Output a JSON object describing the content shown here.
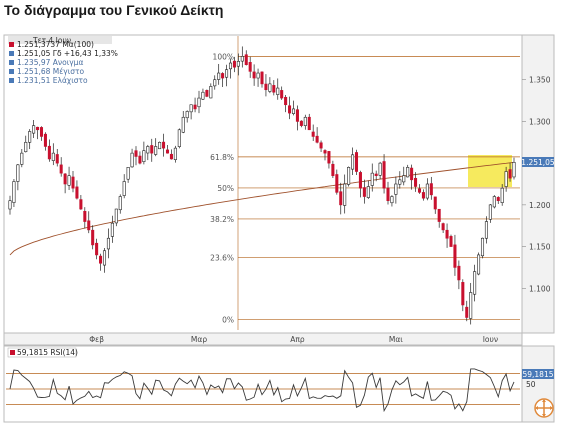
{
  "title": "Το διάγραμμα του Γενικού Δείκτη",
  "colors": {
    "up": "#ffffff",
    "down": "#c8102e",
    "ma": "#a0522d",
    "fib": "#b5651d",
    "rsi": "#3a3a3a",
    "highlight": "#f5e642",
    "label_bg": "#4a7ab8"
  },
  "main_chart": {
    "date_header": "Τετ 4 Ιουν",
    "legend": [
      {
        "icon": "down",
        "text": "1.251,3737 Μα(100)"
      },
      {
        "icon": "up",
        "text": "1.251,05 Γδ +16,43 1,33%"
      },
      {
        "icon": "up",
        "text": "1.235,97 Ανοιγμα"
      },
      {
        "icon": "up",
        "text": "1.251,68 Μέγιστο"
      },
      {
        "icon": "up",
        "text": "1.231,51 Ελάχιστο"
      }
    ],
    "current_label": "1.251,05",
    "fib_labels": [
      "100%",
      "61.8%",
      "50%",
      "38.2%",
      "23.6%",
      "0%"
    ],
    "fib_levels": [
      1.378,
      1.2575,
      1.2203,
      1.1831,
      1.137,
      1.0625
    ],
    "y_ticks": [
      "1.350",
      "1.300",
      "1.250",
      "1.200",
      "1.150",
      "1.100"
    ],
    "y_tick_values": [
      1.35,
      1.3,
      1.25,
      1.2,
      1.15,
      1.1
    ],
    "x_ticks": [
      "Φεβ",
      "Μαρ",
      "Απρ",
      "Μαι",
      "Ιουν"
    ],
    "x_tick_index": [
      22,
      48,
      73,
      98,
      122
    ]
  },
  "rsi_panel": {
    "label": "59,1815 RSI(14)",
    "value_label": "59,1815",
    "tick_50": "50",
    "levels": [
      70,
      50,
      30
    ]
  },
  "chart_data": {
    "type": "candlestick",
    "title": "Το διάγραμμα του Γενικού Δείκτη",
    "ylim": [
      1.05,
      1.4
    ],
    "close": [
      1.205,
      1.228,
      1.248,
      1.262,
      1.275,
      1.288,
      1.295,
      1.29,
      1.282,
      1.27,
      1.255,
      1.262,
      1.25,
      1.238,
      1.225,
      1.235,
      1.22,
      1.208,
      1.195,
      1.18,
      1.17,
      1.152,
      1.14,
      1.13,
      1.145,
      1.16,
      1.178,
      1.195,
      1.21,
      1.228,
      1.245,
      1.262,
      1.258,
      1.25,
      1.265,
      1.27,
      1.262,
      1.27,
      1.275,
      1.268,
      1.262,
      1.255,
      1.268,
      1.29,
      1.305,
      1.312,
      1.32,
      1.315,
      1.328,
      1.335,
      1.33,
      1.342,
      1.35,
      1.358,
      1.352,
      1.362,
      1.37,
      1.365,
      1.372,
      1.378,
      1.368,
      1.36,
      1.352,
      1.358,
      1.345,
      1.338,
      1.345,
      1.335,
      1.34,
      1.328,
      1.32,
      1.31,
      1.315,
      1.3,
      1.295,
      1.305,
      1.29,
      1.282,
      1.275,
      1.268,
      1.262,
      1.25,
      1.235,
      1.215,
      1.2,
      1.225,
      1.245,
      1.26,
      1.24,
      1.22,
      1.21,
      1.222,
      1.238,
      1.235,
      1.25,
      1.22,
      1.205,
      1.21,
      1.225,
      1.23,
      1.235,
      1.245,
      1.23,
      1.222,
      1.215,
      1.208,
      1.225,
      1.212,
      1.195,
      1.18,
      1.17,
      1.16,
      1.15,
      1.125,
      1.11,
      1.08,
      1.065,
      1.095,
      1.12,
      1.14,
      1.16,
      1.18,
      1.2,
      1.21,
      1.205,
      1.22,
      1.24,
      1.232,
      1.251
    ],
    "ma100_start_end": [
      1.14,
      1.251
    ],
    "rsi_last": 59.18
  }
}
